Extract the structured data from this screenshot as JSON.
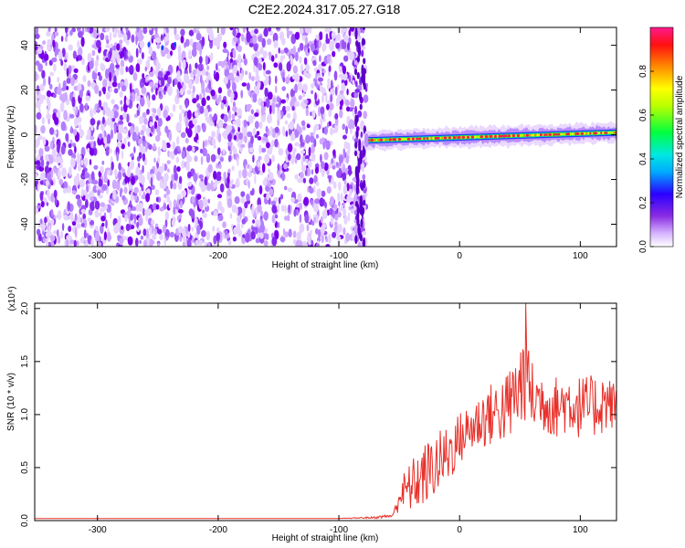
{
  "title": "C2E2.2024.317.05.27.G18",
  "colors": {
    "accent_line": "#e8302a",
    "spectrogram_cloud": "#7a00ea",
    "spectrogram_band": "#ff1f3d"
  },
  "chart_data": [
    {
      "type": "heatmap",
      "xlabel": "Height of straight line (km)",
      "ylabel": "Frequency (Hz)",
      "xlim": [
        -352,
        130
      ],
      "ylim": [
        -50,
        48
      ],
      "xticks": [
        -300,
        -200,
        -100,
        0,
        100
      ],
      "yticks": [
        -40,
        -20,
        0,
        20,
        40
      ],
      "grid": false,
      "colorbar": {
        "label": "Normalized spectral amplitude",
        "range": [
          0.0,
          1.0
        ],
        "ticks": [
          0.0,
          0.2,
          0.4,
          0.6,
          0.8
        ],
        "colormap": [
          "#ffffff",
          "#c080ff",
          "#7a00ea",
          "#0000ff",
          "#00c8ff",
          "#00ff40",
          "#c8ff00",
          "#ffff00",
          "#ff8000",
          "#ff0000",
          "#ff0080"
        ]
      },
      "regions": [
        {
          "kind": "noise",
          "x": [
            -352,
            -77
          ],
          "y": [
            -50,
            48
          ],
          "amplitude": 0.15
        },
        {
          "kind": "band",
          "x": [
            -77,
            130
          ],
          "y_center": [
            -2.5,
            1
          ],
          "amplitude": 0.85
        }
      ]
    },
    {
      "type": "line",
      "xlabel": "Height of straight line (km)",
      "ylabel": "SNR (10 * v/v)",
      "y_multiplier": "(x10^4)",
      "xlim": [
        -352,
        130
      ],
      "ylim": [
        0,
        2.05
      ],
      "xticks": [
        -300,
        -200,
        -100,
        0,
        100
      ],
      "yticks": [
        0.0,
        0.5,
        1.0,
        1.5,
        2.0
      ],
      "grid": false,
      "series": [
        {
          "x": [
            -352,
            -300,
            -250,
            -200,
            -150,
            -100,
            -70,
            -55,
            -50,
            -40,
            -30,
            -20,
            -10,
            0,
            10,
            20,
            30,
            40,
            50,
            55,
            60,
            70,
            80,
            90,
            100,
            110,
            120,
            130
          ],
          "y": [
            0.02,
            0.02,
            0.02,
            0.02,
            0.02,
            0.02,
            0.03,
            0.05,
            0.25,
            0.35,
            0.45,
            0.55,
            0.65,
            0.8,
            0.9,
            1.0,
            1.05,
            1.1,
            1.3,
            1.5,
            1.2,
            1.15,
            1.1,
            1.15,
            1.1,
            1.1,
            1.15,
            1.1
          ],
          "spread": [
            0,
            0,
            0,
            0,
            0,
            0,
            0.01,
            0.02,
            0.15,
            0.25,
            0.3,
            0.3,
            0.3,
            0.25,
            0.25,
            0.3,
            0.3,
            0.35,
            0.45,
            0.5,
            0.35,
            0.3,
            0.3,
            0.3,
            0.3,
            0.3,
            0.3,
            0.2
          ],
          "peak": {
            "x": 55,
            "y": 2.05
          }
        }
      ]
    }
  ]
}
